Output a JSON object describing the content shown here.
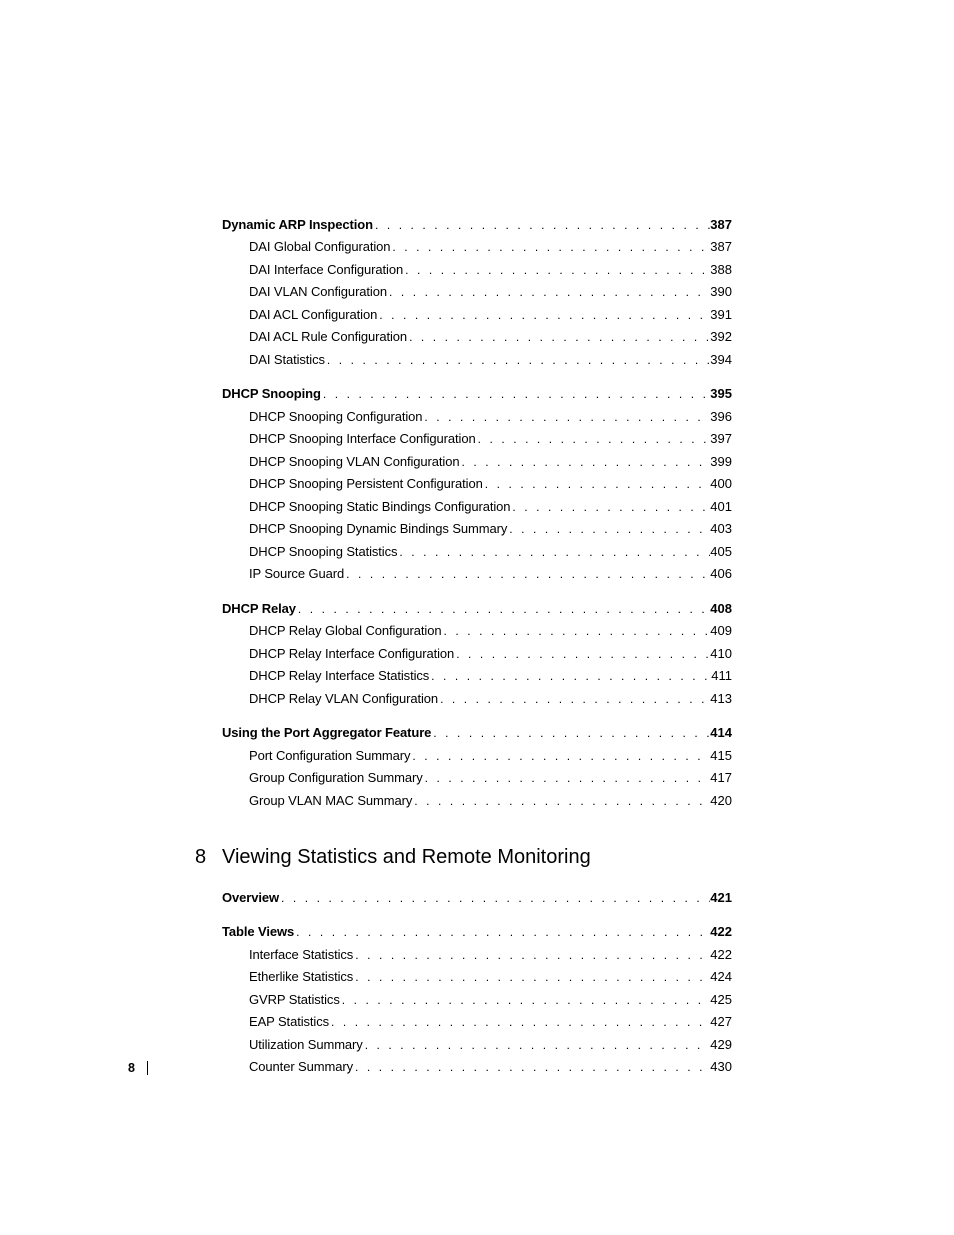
{
  "leader_dots": ". . . . . . . . . . . . . . . . . . . . . . . . . . . . . . . . . . . . . . . . . . . . . . . . . . . . . . . . . . . . . . . . . . . . . . . . . . . . . . . . . . . . .",
  "sections": [
    {
      "head": {
        "title": "Dynamic ARP Inspection",
        "page": "387"
      },
      "items": [
        {
          "title": "DAI Global Configuration",
          "page": "387"
        },
        {
          "title": "DAI Interface Configuration",
          "page": "388"
        },
        {
          "title": "DAI VLAN Configuration",
          "page": "390"
        },
        {
          "title": "DAI ACL Configuration",
          "page": "391"
        },
        {
          "title": "DAI ACL Rule Configuration",
          "page": "392"
        },
        {
          "title": "DAI Statistics",
          "page": "394"
        }
      ]
    },
    {
      "head": {
        "title": "DHCP Snooping",
        "page": "395"
      },
      "items": [
        {
          "title": "DHCP Snooping Configuration",
          "page": "396"
        },
        {
          "title": "DHCP Snooping Interface Configuration",
          "page": "397"
        },
        {
          "title": "DHCP Snooping VLAN Configuration",
          "page": "399"
        },
        {
          "title": "DHCP Snooping Persistent Configuration",
          "page": "400"
        },
        {
          "title": "DHCP Snooping Static Bindings Configuration",
          "page": "401"
        },
        {
          "title": "DHCP Snooping Dynamic Bindings Summary",
          "page": "403"
        },
        {
          "title": "DHCP Snooping Statistics",
          "page": "405"
        },
        {
          "title": "IP Source Guard",
          "page": "406"
        }
      ]
    },
    {
      "head": {
        "title": "DHCP Relay",
        "page": "408"
      },
      "items": [
        {
          "title": "DHCP Relay Global Configuration",
          "page": "409"
        },
        {
          "title": "DHCP Relay Interface Configuration",
          "page": "410"
        },
        {
          "title": "DHCP Relay Interface Statistics",
          "page": "411"
        },
        {
          "title": "DHCP Relay VLAN Configuration",
          "page": "413"
        }
      ]
    },
    {
      "head": {
        "title": "Using the Port Aggregator Feature",
        "page": "414"
      },
      "items": [
        {
          "title": "Port Configuration Summary",
          "page": "415"
        },
        {
          "title": "Group Configuration Summary",
          "page": "417"
        },
        {
          "title": "Group VLAN MAC Summary",
          "page": "420"
        }
      ]
    }
  ],
  "chapter": {
    "num": "8",
    "title": "Viewing Statistics and Remote Monitoring"
  },
  "sections2": [
    {
      "head": {
        "title": "Overview",
        "page": "421"
      },
      "items": []
    },
    {
      "head": {
        "title": "Table Views",
        "page": "422"
      },
      "items": [
        {
          "title": "Interface Statistics",
          "page": "422"
        },
        {
          "title": "Etherlike Statistics",
          "page": "424"
        },
        {
          "title": "GVRP Statistics",
          "page": "425"
        },
        {
          "title": "EAP Statistics",
          "page": "427"
        },
        {
          "title": "Utilization Summary",
          "page": "429"
        },
        {
          "title": "Counter Summary",
          "page": "430"
        }
      ]
    }
  ],
  "footer_page": "8"
}
